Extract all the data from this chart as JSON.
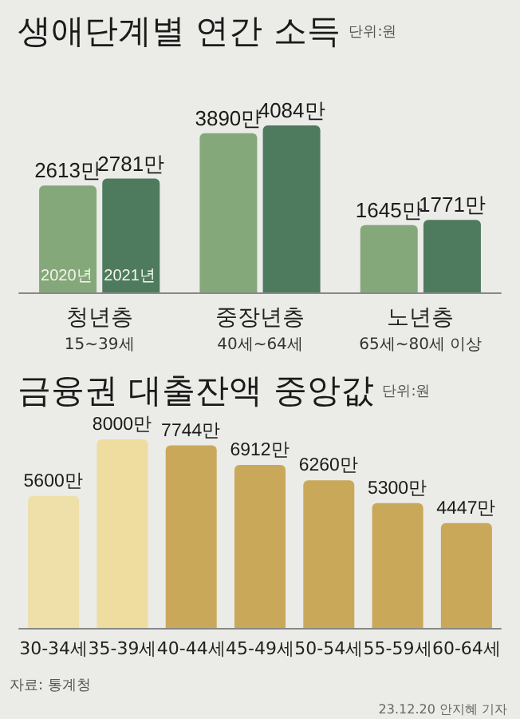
{
  "chart_data": [
    {
      "type": "bar",
      "title": "생애단계별 연간 소득",
      "subtitle": "단위:원",
      "categories": [
        "청년층\n15~39세",
        "중장년층\n40세~64세",
        "노년층\n65세~80세 이상"
      ],
      "series": [
        {
          "name": "2020년",
          "color": "#84a87a",
          "values": [
            2613,
            3890,
            1645
          ],
          "value_labels": [
            "2613만",
            "3890만",
            "1645만"
          ]
        },
        {
          "name": "2021년",
          "color": "#4e7a5e",
          "values": [
            2781,
            4084,
            1771
          ],
          "value_labels": [
            "2781만",
            "4084만",
            "1771만"
          ]
        }
      ],
      "legend": false
    },
    {
      "type": "bar",
      "title": "금융권 대출잔액 중앙값",
      "subtitle": "단위:원",
      "categories": [
        "30-34세",
        "35-39세",
        "40-44세",
        "45-49세",
        "50-54세",
        "55-59세",
        "60-64세"
      ],
      "values": [
        5600,
        8000,
        7744,
        6912,
        6260,
        5300,
        4447
      ],
      "value_labels": [
        "5600만",
        "8000만",
        "7744만",
        "6912만",
        "6260만",
        "5300만",
        "4447만"
      ],
      "colors": [
        "#efdfa8",
        "#eedd9f",
        "#c9a85a",
        "#c9a85a",
        "#c9a85a",
        "#c9a85a",
        "#c9a85a"
      ],
      "annotations": [
        "자료: 통계청",
        "23.12.20 안지혜 기자"
      ]
    }
  ]
}
